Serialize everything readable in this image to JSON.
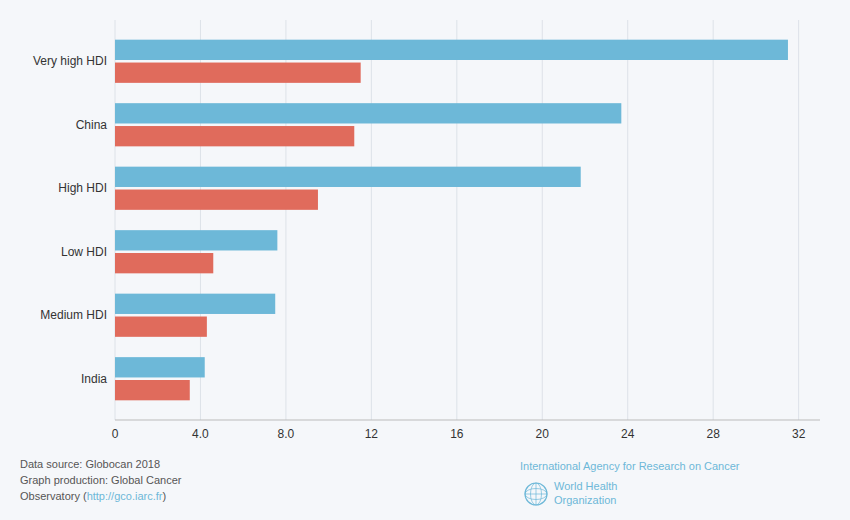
{
  "chart_data": {
    "type": "bar",
    "orientation": "horizontal",
    "categories": [
      "India",
      "Medium HDI",
      "Low HDI",
      "High HDI",
      "China",
      "Very high HDI"
    ],
    "series": [
      {
        "color": "#6db8d8",
        "values": [
          4.2,
          7.5,
          7.6,
          21.8,
          23.7,
          31.5
        ]
      },
      {
        "color": "#e06b5c",
        "values": [
          3.5,
          4.3,
          4.6,
          9.5,
          11.2,
          11.5
        ]
      }
    ],
    "xlim": [
      0,
      33
    ],
    "xticks": [
      0,
      {
        "value": 4,
        "label": "4.0"
      },
      {
        "value": 8,
        "label": "8.0"
      },
      12,
      16,
      20,
      24,
      28,
      32
    ],
    "grid": true,
    "annotations": [
      "Data source: Globocan 2018",
      "Graph production: Global Cancer",
      "Observatory (",
      "http://gco.iarc.fr",
      ")",
      "International Agency for Research on Cancer",
      "World Health",
      "Organization"
    ]
  }
}
